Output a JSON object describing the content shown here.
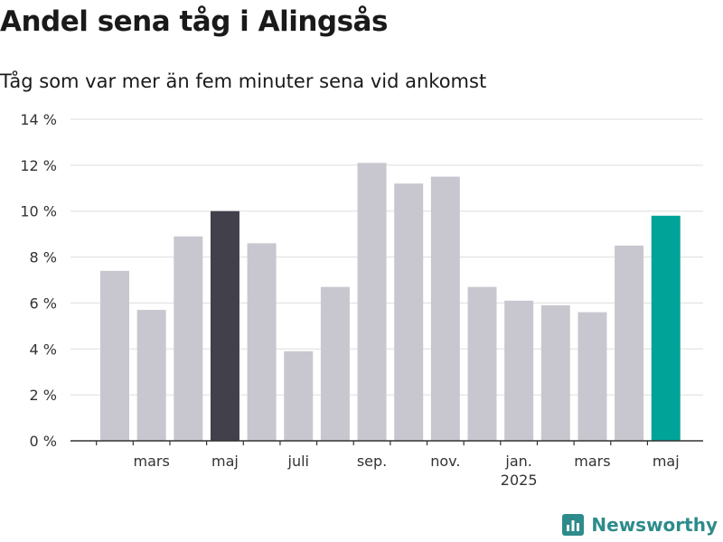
{
  "header": {
    "title": "Andel sena tåg i Alingsås",
    "subtitle": "Tåg som var mer än fem minuter sena vid ankomst"
  },
  "brand": {
    "name": "Newsworthy",
    "color": "#2e8b8b"
  },
  "colors": {
    "default": "#c8c7cf",
    "highlight_dark": "#41404b",
    "highlight_accent": "#00a398",
    "grid": "#dedede",
    "axis": "#333333"
  },
  "chart_data": {
    "type": "bar",
    "categories": [
      "2024-02",
      "2024-03",
      "2024-04",
      "2024-05",
      "2024-06",
      "2024-07",
      "2024-08",
      "2024-09",
      "2024-10",
      "2024-11",
      "2024-12",
      "2025-01",
      "2025-02",
      "2025-03",
      "2025-04",
      "2025-05"
    ],
    "values": [
      7.4,
      5.7,
      8.9,
      10.0,
      8.6,
      3.9,
      6.7,
      12.1,
      11.2,
      11.5,
      6.7,
      6.1,
      5.9,
      5.6,
      8.5,
      9.8
    ],
    "highlight": {
      "2024-05": "highlight_dark",
      "2025-05": "highlight_accent"
    },
    "ylim": [
      0,
      14
    ],
    "y_ticks": [
      0,
      2,
      4,
      6,
      8,
      10,
      12,
      14
    ],
    "y_tick_labels": [
      "0 %",
      "2 %",
      "4 %",
      "6 %",
      "8 %",
      "10 %",
      "12 %",
      "14 %"
    ],
    "x_ticks": [
      {
        "category": "2024-03",
        "label": "mars"
      },
      {
        "category": "2024-05",
        "label": "maj"
      },
      {
        "category": "2024-07",
        "label": "juli"
      },
      {
        "category": "2024-09",
        "label": "sep."
      },
      {
        "category": "2024-11",
        "label": "nov."
      },
      {
        "category": "2025-01",
        "label": "jan.",
        "sublabel": "2025"
      },
      {
        "category": "2025-03",
        "label": "mars"
      },
      {
        "category": "2025-05",
        "label": "maj"
      }
    ],
    "grid": true
  }
}
